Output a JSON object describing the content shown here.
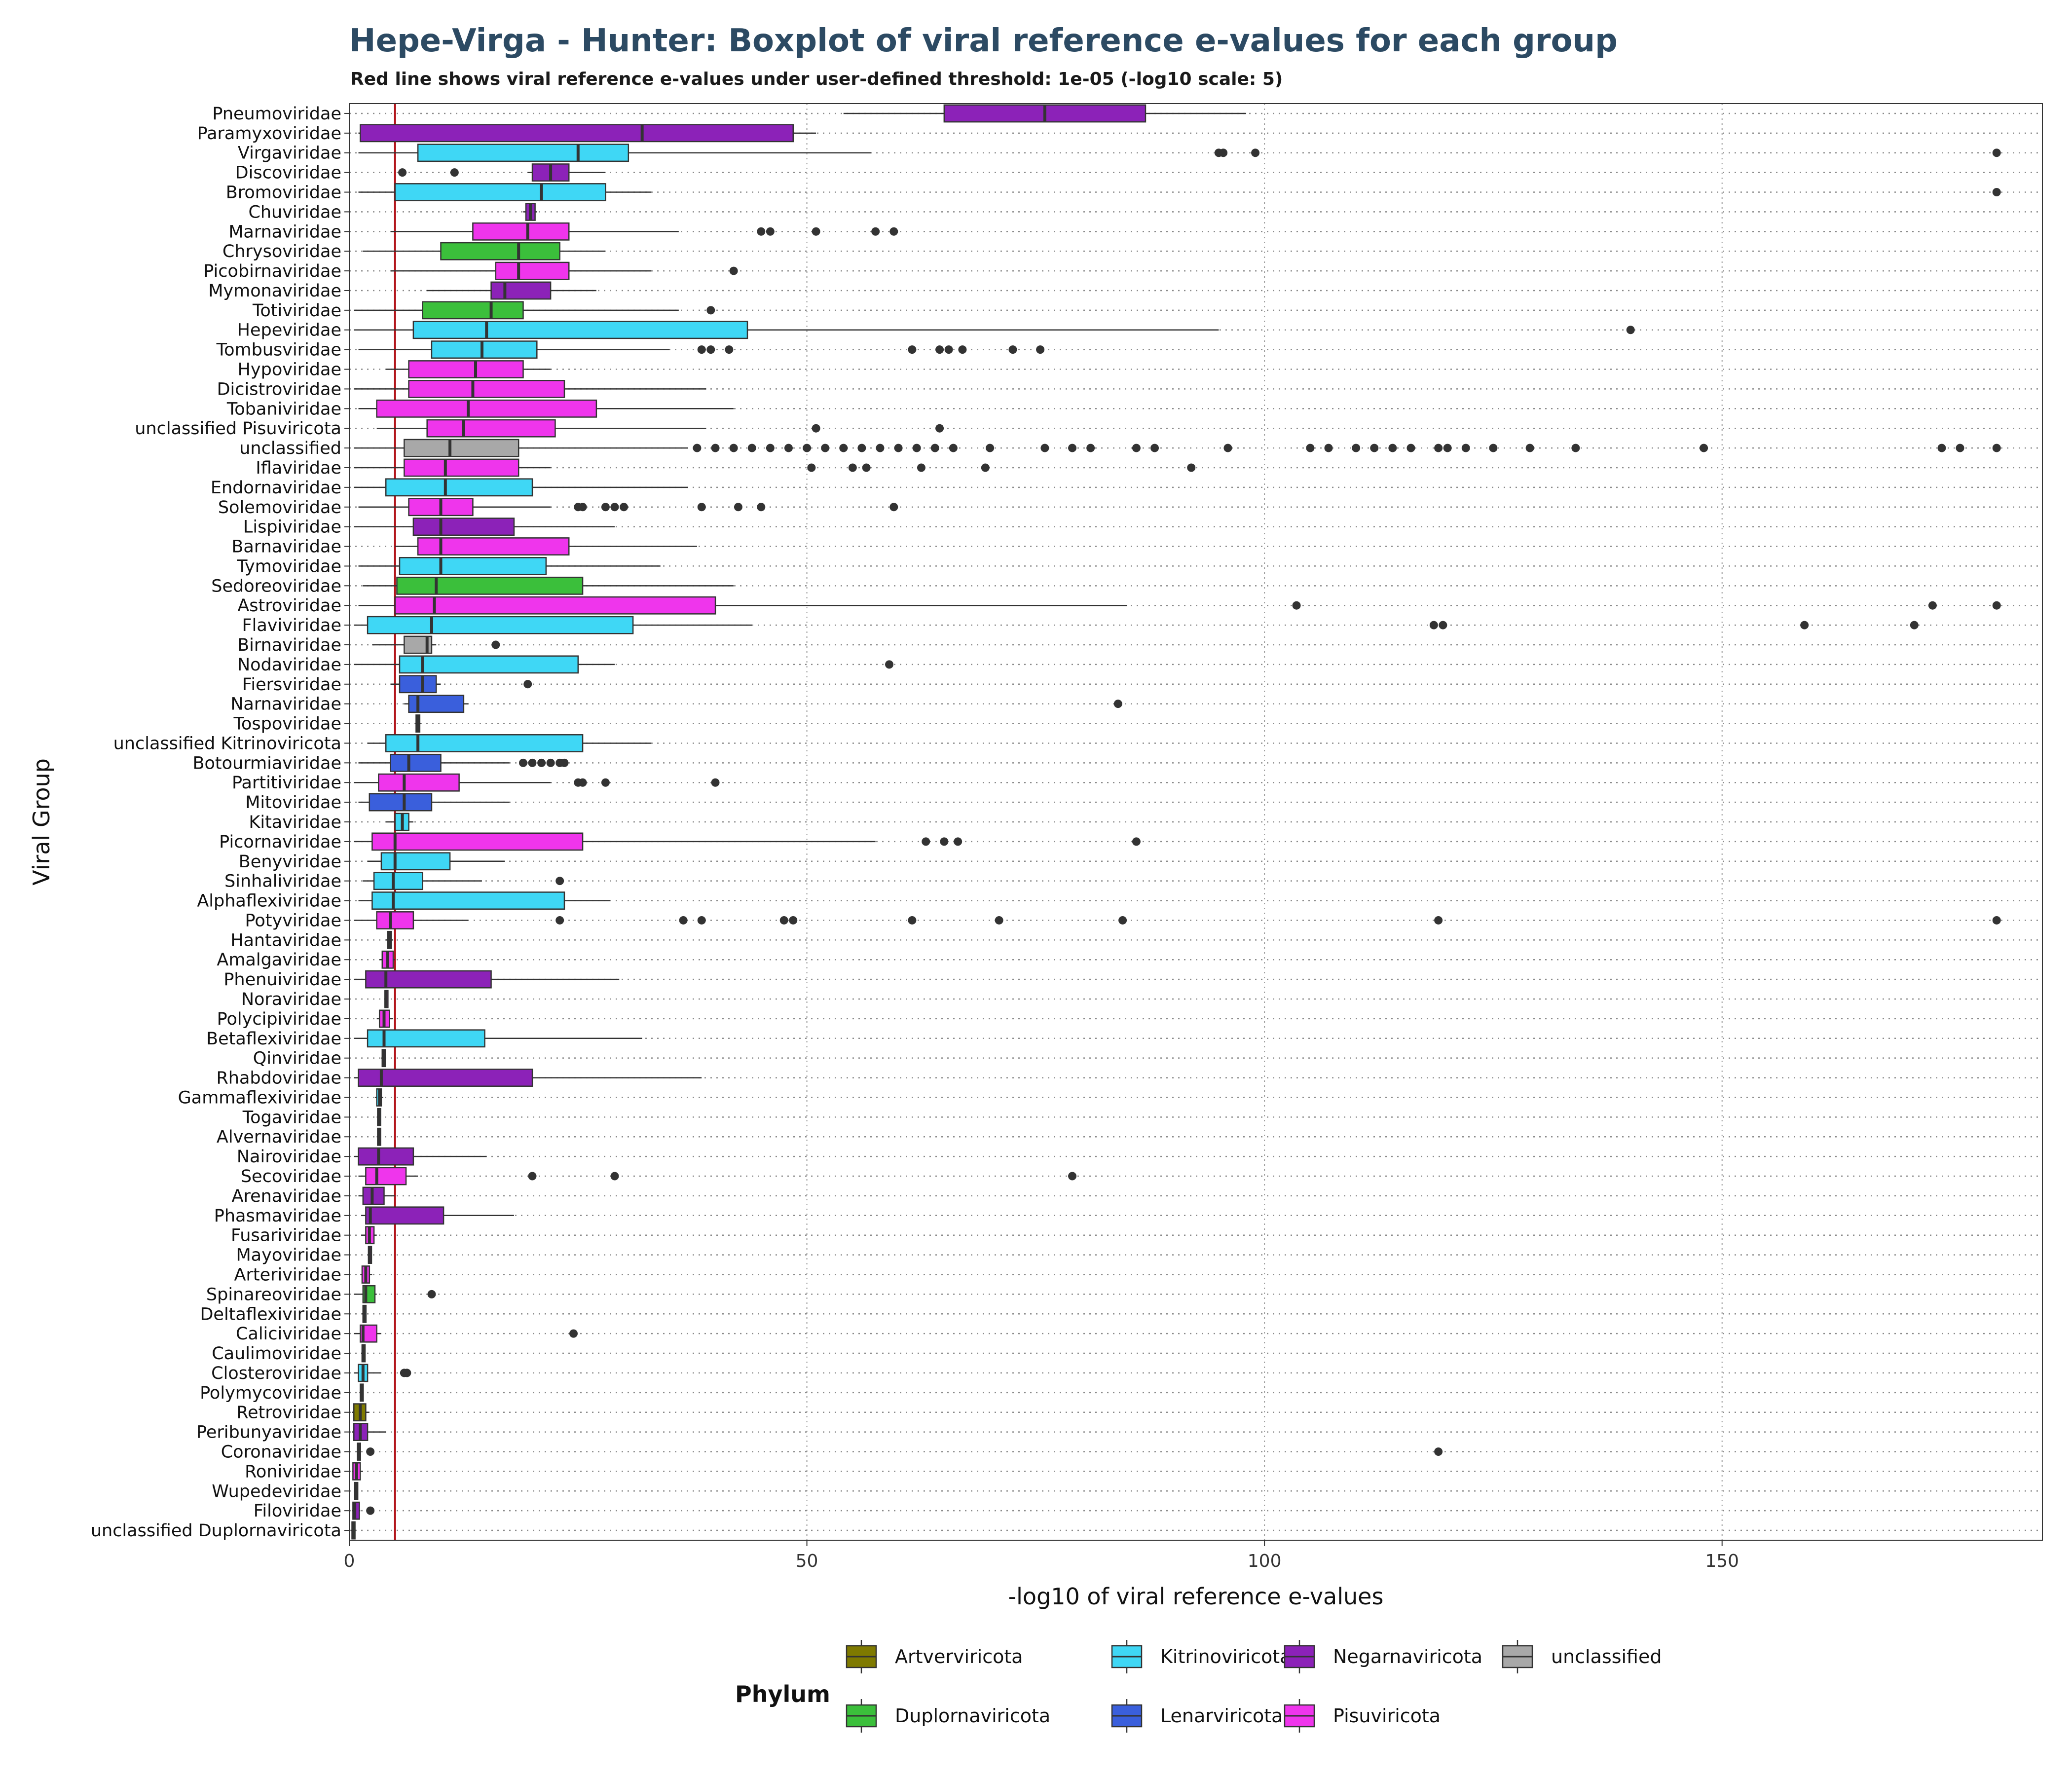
{
  "chart_data": {
    "type": "boxplot",
    "title": "Hepe-Virga - Hunter: Boxplot of viral reference e-values for each group",
    "subtitle": "Red line shows viral reference e-values under user-defined threshold: 1e-05 (-log10 scale: 5)",
    "xlabel": "-log10 of viral reference e-values",
    "ylabel": "Viral Group",
    "xlim": [
      0,
      185
    ],
    "x_ticks": [
      "0",
      "50",
      "100",
      "150"
    ],
    "threshold": 5,
    "threshold_color": "#b2161c",
    "grid": "dotted",
    "legend_position": "bottom",
    "legend_title": "Phylum",
    "phyla": [
      {
        "name": "Artverviricota",
        "color": "#7f7a00"
      },
      {
        "name": "Duplornaviricota",
        "color": "#3bbf3b"
      },
      {
        "name": "Kitrinoviricota",
        "color": "#3fd7f5"
      },
      {
        "name": "Lenarviricota",
        "color": "#3a5fdc"
      },
      {
        "name": "Negarnaviricota",
        "color": "#8c22b8"
      },
      {
        "name": "Pisuviricota",
        "color": "#ef35ec"
      },
      {
        "name": "unclassified",
        "color": "#a8a8a8"
      }
    ],
    "series": [
      {
        "name": "Pneumoviridae",
        "phylum": "Negarnaviricota",
        "whisker_low": 54,
        "q1": 65,
        "median": 76,
        "q3": 87,
        "whisker_high": 98,
        "outliers": []
      },
      {
        "name": "Paramyxoviridae",
        "phylum": "Negarnaviricota",
        "whisker_low": 1,
        "q1": 1.2,
        "median": 32,
        "q3": 48.5,
        "whisker_high": 51,
        "outliers": []
      },
      {
        "name": "Virgaviridae",
        "phylum": "Kitrinoviricota",
        "whisker_low": 1,
        "q1": 7.5,
        "median": 25,
        "q3": 30.5,
        "whisker_high": 57,
        "outliers": [
          95,
          95.5,
          99,
          180
        ]
      },
      {
        "name": "Discoviridae",
        "phylum": "Negarnaviricota",
        "whisker_low": 19.5,
        "q1": 20,
        "median": 22,
        "q3": 24,
        "whisker_high": 28,
        "outliers": [
          5.8,
          11.5
        ]
      },
      {
        "name": "Bromoviridae",
        "phylum": "Kitrinoviricota",
        "whisker_low": 1,
        "q1": 5,
        "median": 21,
        "q3": 28,
        "whisker_high": 33,
        "outliers": [
          180
        ]
      },
      {
        "name": "Chuviridae",
        "phylum": "Negarnaviricota",
        "whisker_low": 19,
        "q1": 19.3,
        "median": 19.8,
        "q3": 20.3,
        "whisker_high": 20.5,
        "outliers": []
      },
      {
        "name": "Marnaviridae",
        "phylum": "Pisuviricota",
        "whisker_low": 4.5,
        "q1": 13.5,
        "median": 19.5,
        "q3": 24,
        "whisker_high": 36,
        "outliers": [
          45,
          46,
          51,
          57.5,
          59.5
        ]
      },
      {
        "name": "Chrysoviridae",
        "phylum": "Duplornaviricota",
        "whisker_low": 1.5,
        "q1": 10,
        "median": 18.5,
        "q3": 23,
        "whisker_high": 28,
        "outliers": []
      },
      {
        "name": "Picobirnaviridae",
        "phylum": "Pisuviricota",
        "whisker_low": 4.5,
        "q1": 16,
        "median": 18.5,
        "q3": 24,
        "whisker_high": 33,
        "outliers": [
          42
        ]
      },
      {
        "name": "Mymonaviridae",
        "phylum": "Negarnaviricota",
        "whisker_low": 8.5,
        "q1": 15.5,
        "median": 17,
        "q3": 22,
        "whisker_high": 27,
        "outliers": []
      },
      {
        "name": "Totiviridae",
        "phylum": "Duplornaviricota",
        "whisker_low": 0.5,
        "q1": 8,
        "median": 15.5,
        "q3": 19,
        "whisker_high": 36,
        "outliers": [
          39.5
        ]
      },
      {
        "name": "Hepeviridae",
        "phylum": "Kitrinoviricota",
        "whisker_low": 0.5,
        "q1": 7,
        "median": 15,
        "q3": 43.5,
        "whisker_high": 95,
        "outliers": [
          140
        ]
      },
      {
        "name": "Tombusviridae",
        "phylum": "Kitrinoviricota",
        "whisker_low": 1,
        "q1": 9,
        "median": 14.5,
        "q3": 20.5,
        "whisker_high": 35,
        "outliers": [
          38.5,
          39.5,
          41.5,
          61.5,
          64.5,
          65.5,
          67,
          72.5,
          75.5
        ]
      },
      {
        "name": "Hypoviridae",
        "phylum": "Pisuviricota",
        "whisker_low": 4,
        "q1": 6.5,
        "median": 13.8,
        "q3": 19,
        "whisker_high": 22,
        "outliers": []
      },
      {
        "name": "Dicistroviridae",
        "phylum": "Pisuviricota",
        "whisker_low": 0.5,
        "q1": 6.5,
        "median": 13.5,
        "q3": 23.5,
        "whisker_high": 39,
        "outliers": []
      },
      {
        "name": "Tobaniviridae",
        "phylum": "Pisuviricota",
        "whisker_low": 1,
        "q1": 3,
        "median": 13,
        "q3": 27,
        "whisker_high": 42,
        "outliers": []
      },
      {
        "name": "unclassified Pisuviricota",
        "phylum": "Pisuviricota",
        "whisker_low": 3,
        "q1": 8.5,
        "median": 12.5,
        "q3": 22.5,
        "whisker_high": 39,
        "outliers": [
          51,
          64.5
        ]
      },
      {
        "name": "unclassified",
        "phylum": "unclassified",
        "whisker_low": 0.5,
        "q1": 6,
        "median": 11,
        "q3": 18.5,
        "whisker_high": 37,
        "outliers": [
          38,
          40,
          42,
          44,
          46,
          48,
          50,
          52,
          54,
          56,
          58,
          60,
          62,
          64,
          66,
          70,
          76,
          79,
          81,
          86,
          88,
          96,
          105,
          107,
          110,
          112,
          114,
          116,
          119,
          120,
          122,
          125,
          129,
          134,
          148,
          174,
          176,
          180
        ]
      },
      {
        "name": "Iflaviridae",
        "phylum": "Pisuviricota",
        "whisker_low": 0.5,
        "q1": 6,
        "median": 10.5,
        "q3": 18.5,
        "whisker_high": 22,
        "outliers": [
          50.5,
          55,
          56.5,
          62.5,
          69.5,
          92
        ]
      },
      {
        "name": "Endornaviridae",
        "phylum": "Kitrinoviricota",
        "whisker_low": 0.5,
        "q1": 4,
        "median": 10.5,
        "q3": 20,
        "whisker_high": 37,
        "outliers": []
      },
      {
        "name": "Solemoviridae",
        "phylum": "Pisuviricota",
        "whisker_low": 1,
        "q1": 6.5,
        "median": 10,
        "q3": 13.5,
        "whisker_high": 22,
        "outliers": [
          25,
          25.5,
          28,
          29,
          30,
          38.5,
          42.5,
          45,
          59.5
        ]
      },
      {
        "name": "Lispiviridae",
        "phylum": "Negarnaviricota",
        "whisker_low": 0.5,
        "q1": 7,
        "median": 10,
        "q3": 18,
        "whisker_high": 29,
        "outliers": []
      },
      {
        "name": "Barnaviridae",
        "phylum": "Pisuviricota",
        "whisker_low": 5,
        "q1": 7.5,
        "median": 10,
        "q3": 24,
        "whisker_high": 38,
        "outliers": []
      },
      {
        "name": "Tymoviridae",
        "phylum": "Kitrinoviricota",
        "whisker_low": 1,
        "q1": 5.5,
        "median": 10,
        "q3": 21.5,
        "whisker_high": 34,
        "outliers": []
      },
      {
        "name": "Sedoreoviridae",
        "phylum": "Duplornaviricota",
        "whisker_low": 1.5,
        "q1": 5.2,
        "median": 9.5,
        "q3": 25.5,
        "whisker_high": 42,
        "outliers": []
      },
      {
        "name": "Astroviridae",
        "phylum": "Pisuviricota",
        "whisker_low": 1,
        "q1": 5,
        "median": 9.3,
        "q3": 40,
        "whisker_high": 85,
        "outliers": [
          103.5,
          173,
          180
        ]
      },
      {
        "name": "Flaviviridae",
        "phylum": "Kitrinoviricota",
        "whisker_low": 0.5,
        "q1": 2,
        "median": 9,
        "q3": 31,
        "whisker_high": 44,
        "outliers": [
          118.5,
          119.5,
          159,
          171
        ]
      },
      {
        "name": "Birnaviridae",
        "phylum": "unclassified",
        "whisker_low": 2.5,
        "q1": 6,
        "median": 8.5,
        "q3": 9,
        "whisker_high": 9.5,
        "outliers": [
          16
        ]
      },
      {
        "name": "Nodaviridae",
        "phylum": "Kitrinoviricota",
        "whisker_low": 0.5,
        "q1": 5.5,
        "median": 8,
        "q3": 25,
        "whisker_high": 29,
        "outliers": [
          59
        ]
      },
      {
        "name": "Fiersviridae",
        "phylum": "Lenarviricota",
        "whisker_low": 4.5,
        "q1": 5.5,
        "median": 8,
        "q3": 9.5,
        "whisker_high": 10,
        "outliers": [
          19.5
        ]
      },
      {
        "name": "Narnaviridae",
        "phylum": "Lenarviricota",
        "whisker_low": 6,
        "q1": 6.5,
        "median": 7.5,
        "q3": 12.5,
        "whisker_high": 13,
        "outliers": [
          84
        ]
      },
      {
        "name": "Tospoviridae",
        "phylum": "Negarnaviricota",
        "whisker_low": 7.2,
        "q1": 7.3,
        "median": 7.5,
        "q3": 7.7,
        "whisker_high": 7.8,
        "outliers": []
      },
      {
        "name": "unclassified Kitrinoviricota",
        "phylum": "Kitrinoviricota",
        "whisker_low": 2,
        "q1": 4,
        "median": 7.5,
        "q3": 25.5,
        "whisker_high": 33,
        "outliers": []
      },
      {
        "name": "Botourmiaviridae",
        "phylum": "Lenarviricota",
        "whisker_low": 1,
        "q1": 4.5,
        "median": 6.5,
        "q3": 10,
        "whisker_high": 17.5,
        "outliers": [
          19,
          20,
          21,
          22,
          23,
          23.5
        ]
      },
      {
        "name": "Partitiviridae",
        "phylum": "Pisuviricota",
        "whisker_low": 0.5,
        "q1": 3.2,
        "median": 6,
        "q3": 12,
        "whisker_high": 22,
        "outliers": [
          25,
          25.5,
          28,
          40
        ]
      },
      {
        "name": "Mitoviridae",
        "phylum": "Lenarviricota",
        "whisker_low": 1,
        "q1": 2.2,
        "median": 6,
        "q3": 9,
        "whisker_high": 17.5,
        "outliers": []
      },
      {
        "name": "Kitaviridae",
        "phylum": "Kitrinoviricota",
        "whisker_low": 4,
        "q1": 5,
        "median": 5.8,
        "q3": 6.5,
        "whisker_high": 7,
        "outliers": []
      },
      {
        "name": "Picornaviridae",
        "phylum": "Pisuviricota",
        "whisker_low": 0.5,
        "q1": 2.5,
        "median": 5,
        "q3": 25.5,
        "whisker_high": 57.5,
        "outliers": [
          63,
          65,
          66.5,
          86
        ]
      },
      {
        "name": "Benyviridae",
        "phylum": "Kitrinoviricota",
        "whisker_low": 2,
        "q1": 3.5,
        "median": 5,
        "q3": 11,
        "whisker_high": 17,
        "outliers": []
      },
      {
        "name": "Sinhaliviridae",
        "phylum": "Kitrinoviricota",
        "whisker_low": 1.5,
        "q1": 2.7,
        "median": 4.8,
        "q3": 8,
        "whisker_high": 14.5,
        "outliers": [
          23
        ]
      },
      {
        "name": "Alphaflexiviridae",
        "phylum": "Kitrinoviricota",
        "whisker_low": 1,
        "q1": 2.5,
        "median": 4.8,
        "q3": 23.5,
        "whisker_high": 28.5,
        "outliers": []
      },
      {
        "name": "Potyviridae",
        "phylum": "Pisuviricota",
        "whisker_low": 0.5,
        "q1": 3,
        "median": 4.5,
        "q3": 7,
        "whisker_high": 13,
        "outliers": [
          23,
          36.5,
          38.5,
          47.5,
          48.5,
          61.5,
          71,
          84.5,
          119,
          180
        ]
      },
      {
        "name": "Hantaviridae",
        "phylum": "Negarnaviricota",
        "whisker_low": 4,
        "q1": 4.2,
        "median": 4.4,
        "q3": 4.6,
        "whisker_high": 4.8,
        "outliers": []
      },
      {
        "name": "Amalgaviridae",
        "phylum": "Pisuviricota",
        "whisker_low": 3.3,
        "q1": 3.6,
        "median": 4.2,
        "q3": 4.8,
        "whisker_high": 5,
        "outliers": []
      },
      {
        "name": "Phenuiviridae",
        "phylum": "Negarnaviricota",
        "whisker_low": 0.5,
        "q1": 1.8,
        "median": 4,
        "q3": 15.5,
        "whisker_high": 29.5,
        "outliers": []
      },
      {
        "name": "Noraviridae",
        "phylum": "Pisuviricota",
        "whisker_low": 3.8,
        "q1": 3.9,
        "median": 4,
        "q3": 4.1,
        "whisker_high": 4.2,
        "outliers": []
      },
      {
        "name": "Polycipiviridae",
        "phylum": "Pisuviricota",
        "whisker_low": 3,
        "q1": 3.3,
        "median": 3.8,
        "q3": 4.4,
        "whisker_high": 4.8,
        "outliers": []
      },
      {
        "name": "Betaflexiviridae",
        "phylum": "Kitrinoviricota",
        "whisker_low": 0.5,
        "q1": 2,
        "median": 3.8,
        "q3": 14.8,
        "whisker_high": 32,
        "outliers": []
      },
      {
        "name": "Qinviridae",
        "phylum": "Negarnaviricota",
        "whisker_low": 3.5,
        "q1": 3.6,
        "median": 3.7,
        "q3": 3.8,
        "whisker_high": 3.9,
        "outliers": []
      },
      {
        "name": "Rhabdoviridae",
        "phylum": "Negarnaviricota",
        "whisker_low": 0.5,
        "q1": 1,
        "median": 3.5,
        "q3": 20,
        "whisker_high": 38.5,
        "outliers": []
      },
      {
        "name": "Gammaflexiviridae",
        "phylum": "Kitrinoviricota",
        "whisker_low": 2.8,
        "q1": 3,
        "median": 3.3,
        "q3": 3.5,
        "whisker_high": 3.7,
        "outliers": []
      },
      {
        "name": "Togaviridae",
        "phylum": "Kitrinoviricota",
        "whisker_low": 3,
        "q1": 3.1,
        "median": 3.2,
        "q3": 3.3,
        "whisker_high": 3.4,
        "outliers": []
      },
      {
        "name": "Alvernaviridae",
        "phylum": "Pisuviricota",
        "whisker_low": 3,
        "q1": 3.1,
        "median": 3.2,
        "q3": 3.3,
        "whisker_high": 3.4,
        "outliers": []
      },
      {
        "name": "Nairoviridae",
        "phylum": "Negarnaviricota",
        "whisker_low": 0.5,
        "q1": 1,
        "median": 3.2,
        "q3": 7,
        "whisker_high": 15,
        "outliers": []
      },
      {
        "name": "Secoviridae",
        "phylum": "Pisuviricota",
        "whisker_low": 1,
        "q1": 1.8,
        "median": 3,
        "q3": 6.2,
        "whisker_high": 7.5,
        "outliers": [
          20,
          29,
          79
        ]
      },
      {
        "name": "Arenaviridae",
        "phylum": "Negarnaviricota",
        "whisker_low": 1,
        "q1": 1.5,
        "median": 2.5,
        "q3": 3.8,
        "whisker_high": 5,
        "outliers": []
      },
      {
        "name": "Phasmaviridae",
        "phylum": "Negarnaviricota",
        "whisker_low": 1.3,
        "q1": 1.8,
        "median": 2.3,
        "q3": 10.3,
        "whisker_high": 18,
        "outliers": []
      },
      {
        "name": "Fusariviridae",
        "phylum": "Pisuviricota",
        "whisker_low": 1.3,
        "q1": 1.8,
        "median": 2.2,
        "q3": 2.7,
        "whisker_high": 3,
        "outliers": []
      },
      {
        "name": "Mayoviridae",
        "phylum": "Pisuviricota",
        "whisker_low": 2,
        "q1": 2.1,
        "median": 2.2,
        "q3": 2.3,
        "whisker_high": 2.4,
        "outliers": []
      },
      {
        "name": "Arteriviridae",
        "phylum": "Pisuviricota",
        "whisker_low": 1.2,
        "q1": 1.4,
        "median": 1.8,
        "q3": 2.2,
        "whisker_high": 2.5,
        "outliers": []
      },
      {
        "name": "Spinareoviridae",
        "phylum": "Duplornaviricota",
        "whisker_low": 0.5,
        "q1": 1.5,
        "median": 1.8,
        "q3": 2.8,
        "whisker_high": 3,
        "outliers": [
          9
        ]
      },
      {
        "name": "Deltaflexiviridae",
        "phylum": "Kitrinoviricota",
        "whisker_low": 1.4,
        "q1": 1.5,
        "median": 1.6,
        "q3": 1.7,
        "whisker_high": 1.8,
        "outliers": []
      },
      {
        "name": "Caliciviridae",
        "phylum": "Pisuviricota",
        "whisker_low": 0.5,
        "q1": 1.2,
        "median": 1.5,
        "q3": 3,
        "whisker_high": 3.5,
        "outliers": [
          24.5
        ]
      },
      {
        "name": "Caulimoviridae",
        "phylum": "Artverviricota",
        "whisker_low": 1.3,
        "q1": 1.4,
        "median": 1.5,
        "q3": 1.6,
        "whisker_high": 1.7,
        "outliers": []
      },
      {
        "name": "Closteroviridae",
        "phylum": "Kitrinoviricota",
        "whisker_low": 0.5,
        "q1": 1,
        "median": 1.5,
        "q3": 2,
        "whisker_high": 3.5,
        "outliers": [
          6,
          6.3
        ]
      },
      {
        "name": "Polymycoviridae",
        "phylum": "unclassified",
        "whisker_low": 1.1,
        "q1": 1.2,
        "median": 1.3,
        "q3": 1.4,
        "whisker_high": 1.5,
        "outliers": []
      },
      {
        "name": "Retroviridae",
        "phylum": "Artverviricota",
        "whisker_low": 0.3,
        "q1": 0.5,
        "median": 1.2,
        "q3": 1.8,
        "whisker_high": 2.2,
        "outliers": []
      },
      {
        "name": "Peribunyaviridae",
        "phylum": "Negarnaviricota",
        "whisker_low": 0.3,
        "q1": 0.5,
        "median": 1.2,
        "q3": 2,
        "whisker_high": 4,
        "outliers": []
      },
      {
        "name": "Coronaviridae",
        "phylum": "Pisuviricota",
        "whisker_low": 0.8,
        "q1": 0.9,
        "median": 1,
        "q3": 1.1,
        "whisker_high": 1.2,
        "outliers": [
          2.3,
          119
        ]
      },
      {
        "name": "Roniviridae",
        "phylum": "Pisuviricota",
        "whisker_low": 0.3,
        "q1": 0.4,
        "median": 0.8,
        "q3": 1.2,
        "whisker_high": 1.5,
        "outliers": []
      },
      {
        "name": "Wupedeviridae",
        "phylum": "Pisuviricota",
        "whisker_low": 0.5,
        "q1": 0.6,
        "median": 0.7,
        "q3": 0.8,
        "whisker_high": 0.9,
        "outliers": []
      },
      {
        "name": "Filoviridae",
        "phylum": "Negarnaviricota",
        "whisker_low": 0.3,
        "q1": 0.4,
        "median": 0.6,
        "q3": 1.1,
        "whisker_high": 1.2,
        "outliers": [
          2.3
        ]
      },
      {
        "name": "unclassified Duplornaviricota",
        "phylum": "Duplornaviricota",
        "whisker_low": 0.2,
        "q1": 0.3,
        "median": 0.4,
        "q3": 0.6,
        "whisker_high": 0.7,
        "outliers": []
      }
    ]
  }
}
